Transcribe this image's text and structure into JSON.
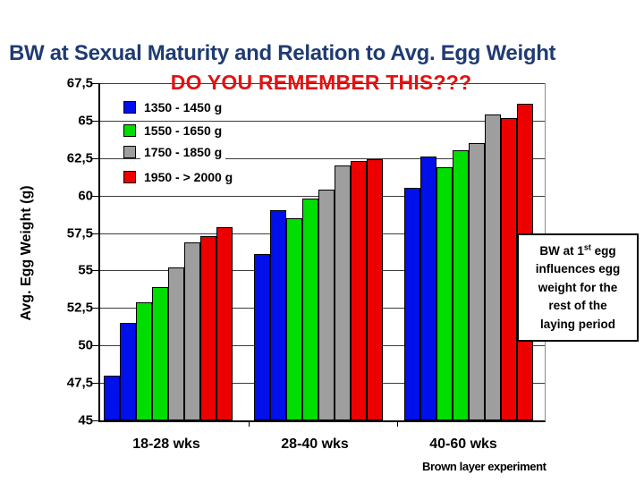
{
  "slide": {
    "title": "BW at Sexual Maturity and Relation to Avg. Egg Weight",
    "subtitle": "DO YOU REMEMBER THIS???",
    "title_color": "#1F3B73",
    "subtitle_color": "#E11212",
    "footer": "Brown layer experiment"
  },
  "annotation": {
    "line1_prefix": "BW at 1",
    "line1_sup": "st",
    "line1_suffix": " egg",
    "line2": "influences egg",
    "line3": "weight for the",
    "line4": "rest of  the",
    "line5": "laying period"
  },
  "chart_data": {
    "type": "bar",
    "title": "BW at Sexual Maturity and Relation to Avg. Egg Weight",
    "subtitle": "DO YOU REMEMBER THIS???",
    "ylabel": "Avg. Egg Weight (g)",
    "xlabel": "",
    "ylim": [
      45,
      67.5
    ],
    "ytick_step": 2.5,
    "ytick_labels": [
      "67,5",
      "65",
      "62,5",
      "60",
      "57,5",
      "55",
      "52,5",
      "50",
      "47,5",
      "45"
    ],
    "grid": true,
    "legend_position": "upper-left-inside",
    "categories": [
      "18-28 wks",
      "28-40 wks",
      "40-60 wks"
    ],
    "bars_per_series_per_category": 2,
    "series": [
      {
        "name": "1350 - 1450 g",
        "color": "#0010EA",
        "values": [
          [
            48.0,
            51.5
          ],
          [
            56.1,
            59.0
          ],
          [
            60.5,
            62.6
          ]
        ]
      },
      {
        "name": "1550 - 1650 g",
        "color": "#00DD00",
        "values": [
          [
            52.9,
            53.9
          ],
          [
            58.5,
            59.8
          ],
          [
            61.9,
            63.0
          ]
        ]
      },
      {
        "name": "1750 - 1850 g",
        "color": "#9E9E9E",
        "values": [
          [
            55.2,
            56.9
          ],
          [
            60.4,
            62.0
          ],
          [
            63.5,
            65.4
          ]
        ]
      },
      {
        "name": "1950 - > 2000 g",
        "color": "#EC0000",
        "values": [
          [
            57.3,
            57.9
          ],
          [
            62.3,
            62.4
          ],
          [
            65.2,
            66.1
          ]
        ]
      }
    ]
  }
}
